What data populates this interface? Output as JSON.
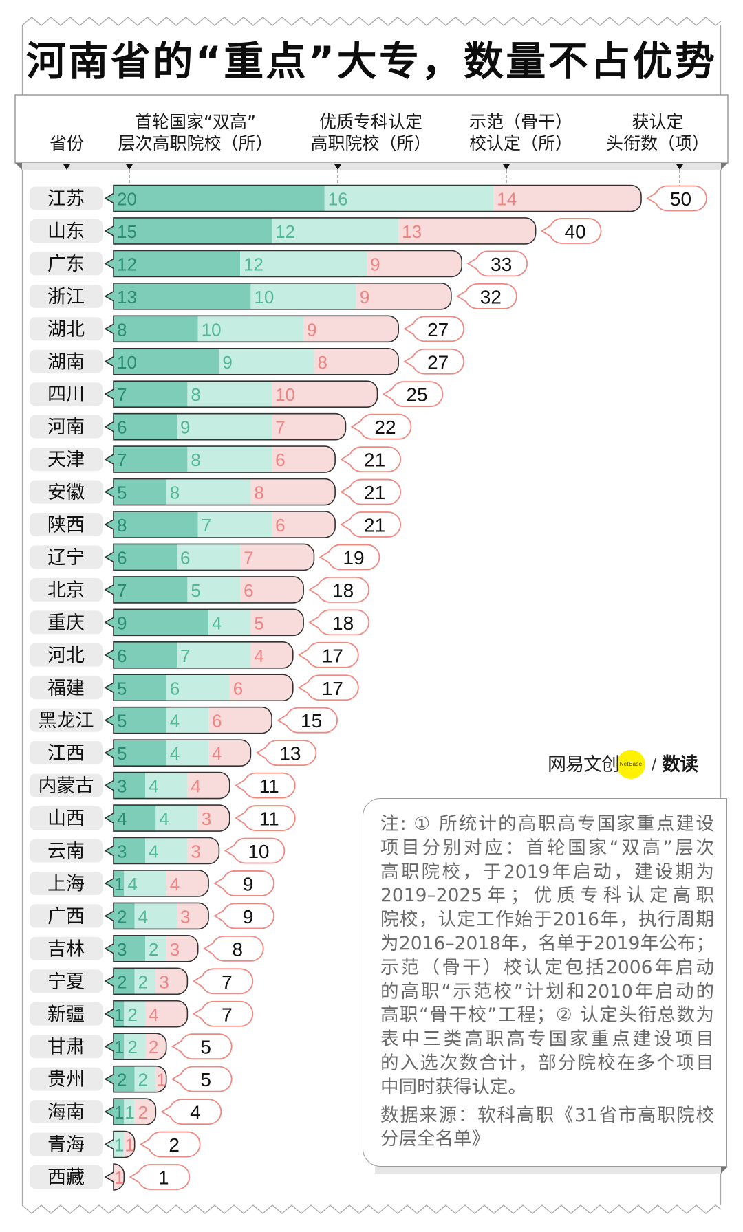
{
  "title": "河南省的“重点”大专，数量不占优势",
  "header": {
    "province": "省份",
    "columns": [
      {
        "line1": "首轮国家“双高”",
        "line2": "层次高职院校（所）"
      },
      {
        "line1": "优质专科认定",
        "line2": "高职院校（所）"
      },
      {
        "line1": "示范（骨干）",
        "line2": "校认定（所）"
      },
      {
        "line1": "获认定",
        "line2": "头衔数（项）"
      }
    ]
  },
  "logo": {
    "brand": "网易文创",
    "badge": "NetEase",
    "separator": "/",
    "section": "数读"
  },
  "note": {
    "lines": [
      "注: ① 所统计的高职高专国家重点建设",
      "项目分别对应：首轮国家“双高”层次",
      "高职院校，于2019年启动，建设期为",
      "2019–2025年；优质专科认定高职",
      "院校，认定工作始于2016年，执行周期",
      "为2016–2018年，名单于2019年公布；",
      "示范（骨干）校认定包括2006年启动",
      "的高职“示范校”计划和2010年启动的",
      "高职“骨干校”工程；② 认定头衔总数为",
      "表中三类高职高专国家重点建设项目",
      "的入选次数合计，部分院校在多个项目",
      "中同时获得认定。"
    ],
    "source_lines": [
      "数据来源：软科高职《31省市高职院校",
      "分层全名单》"
    ]
  },
  "colors": {
    "series_fill": [
      "#7ecdb9",
      "#c6ede1",
      "#f8dbdb"
    ],
    "series_text": [
      "#2b8c73",
      "#53b895",
      "#ee8582"
    ],
    "total_border": "#f08781",
    "label_bg": "#ebebeb",
    "logo_yellow": "#fff200"
  },
  "chart_data": {
    "type": "bar",
    "orientation": "horizontal",
    "stacked": true,
    "title": "河南省的“重点”大专，数量不占优势",
    "xlabel": "",
    "ylabel": "省份",
    "categories": [
      "江苏",
      "山东",
      "广东",
      "浙江",
      "湖北",
      "湖南",
      "四川",
      "河南",
      "天津",
      "安徽",
      "陕西",
      "辽宁",
      "北京",
      "重庆",
      "河北",
      "福建",
      "黑龙江",
      "江西",
      "内蒙古",
      "山西",
      "云南",
      "上海",
      "广西",
      "吉林",
      "宁夏",
      "新疆",
      "甘肃",
      "贵州",
      "海南",
      "青海",
      "西藏"
    ],
    "series": [
      {
        "name": "首轮国家“双高”层次高职院校（所）",
        "values": [
          20,
          15,
          12,
          13,
          8,
          10,
          7,
          6,
          7,
          5,
          8,
          6,
          7,
          9,
          6,
          5,
          5,
          5,
          3,
          4,
          3,
          1,
          2,
          3,
          2,
          1,
          1,
          2,
          1,
          0,
          0
        ]
      },
      {
        "name": "优质专科认定高职院校（所）",
        "values": [
          16,
          12,
          12,
          10,
          10,
          9,
          8,
          9,
          8,
          8,
          7,
          6,
          5,
          4,
          7,
          6,
          4,
          4,
          4,
          4,
          4,
          4,
          4,
          2,
          2,
          2,
          2,
          2,
          1,
          1,
          0
        ]
      },
      {
        "name": "示范（骨干）校认定（所）",
        "values": [
          14,
          13,
          9,
          9,
          9,
          8,
          10,
          7,
          6,
          8,
          6,
          7,
          6,
          5,
          4,
          6,
          6,
          4,
          4,
          3,
          3,
          4,
          3,
          3,
          3,
          4,
          2,
          1,
          2,
          1,
          1
        ]
      }
    ],
    "totals": {
      "name": "获认定头衔数（项）",
      "values": [
        50,
        40,
        33,
        32,
        27,
        27,
        25,
        22,
        21,
        21,
        21,
        19,
        18,
        18,
        17,
        17,
        15,
        13,
        11,
        11,
        10,
        9,
        9,
        8,
        7,
        7,
        5,
        5,
        4,
        2,
        1
      ]
    },
    "xlim": [
      0,
      50
    ],
    "grid": false,
    "legend": "top (column headers)"
  }
}
